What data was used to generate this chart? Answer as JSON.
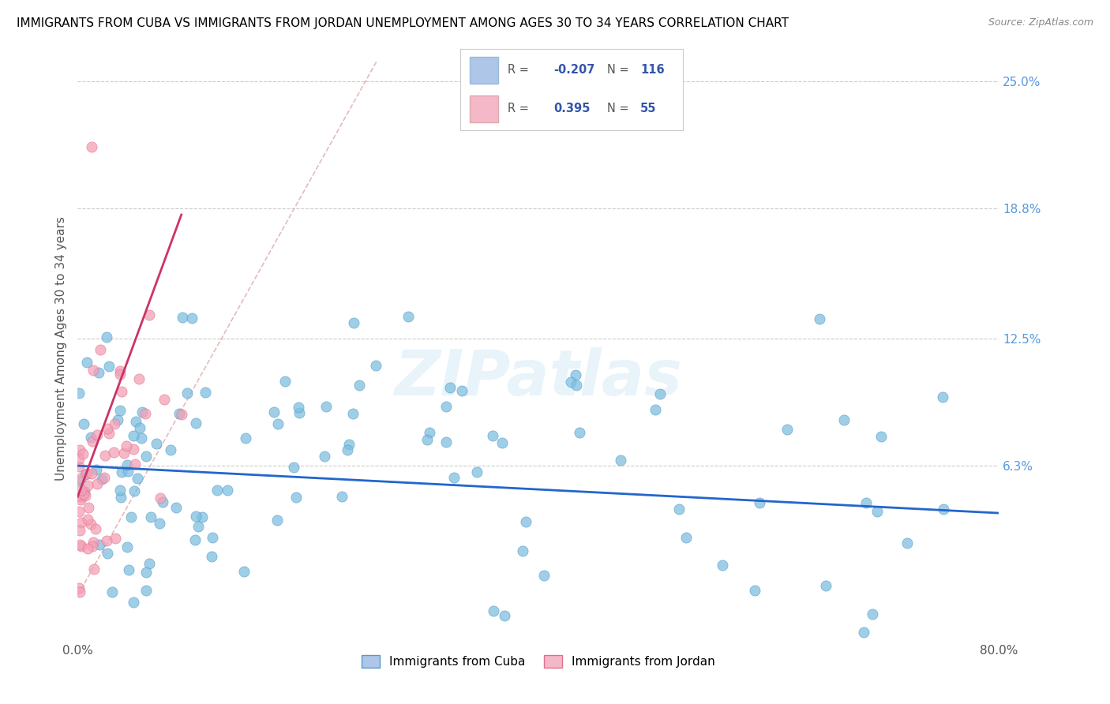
{
  "title": "IMMIGRANTS FROM CUBA VS IMMIGRANTS FROM JORDAN UNEMPLOYMENT AMONG AGES 30 TO 34 YEARS CORRELATION CHART",
  "source": "Source: ZipAtlas.com",
  "ylabel_label": "Unemployment Among Ages 30 to 34 years",
  "ytick_labels": [
    "6.3%",
    "12.5%",
    "18.8%",
    "25.0%"
  ],
  "ytick_values": [
    0.063,
    0.125,
    0.188,
    0.25
  ],
  "xlim": [
    0,
    0.8
  ],
  "ylim": [
    -0.022,
    0.262
  ],
  "cuba_color": "#7fbfdf",
  "cuba_edge_color": "#5599cc",
  "jordan_color": "#f4a0b5",
  "jordan_edge_color": "#e07090",
  "cuba_scatter_alpha": 0.75,
  "jordan_scatter_alpha": 0.75,
  "watermark": "ZIPatlas",
  "cuba_trend_color": "#2266cc",
  "jordan_trend_color": "#cc3366",
  "ref_line_color": "#ddaaaa",
  "grid_color": "#cccccc",
  "title_fontsize": 11,
  "source_fontsize": 9,
  "axis_label_color": "#555555",
  "ytick_color": "#5599dd",
  "legend_cuba_color": "#aec6e8",
  "legend_jordan_color": "#f4b8c8",
  "legend_text_color": "#555555",
  "legend_value_color": "#3355aa"
}
